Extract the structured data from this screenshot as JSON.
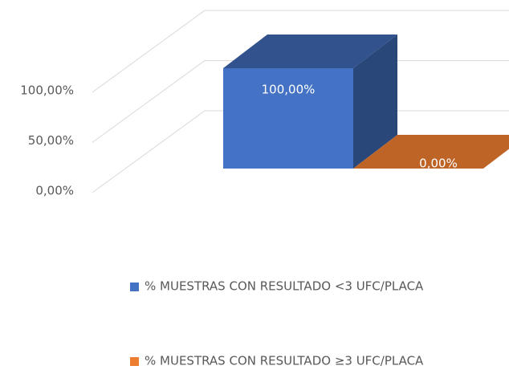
{
  "chart_data": {
    "type": "bar3d",
    "categories": [
      null
    ],
    "series": [
      {
        "name": "% MUESTRAS CON RESULTADO <3 UFC/PLACA",
        "color": "#4472c4",
        "values": [
          100
        ],
        "value_labels": [
          "100,00%"
        ]
      },
      {
        "name": "% MUESTRAS CON RESULTADO ≥3 UFC/PLACA",
        "color": "#ed7d31",
        "values": [
          0
        ],
        "value_labels": [
          "0,00%"
        ]
      }
    ],
    "ylim": [
      0,
      100
    ],
    "yticks": [
      {
        "value": 0,
        "label": "0,00%"
      },
      {
        "value": 50,
        "label": "50,00%"
      },
      {
        "value": 100,
        "label": "100,00%"
      }
    ],
    "grid": true
  }
}
